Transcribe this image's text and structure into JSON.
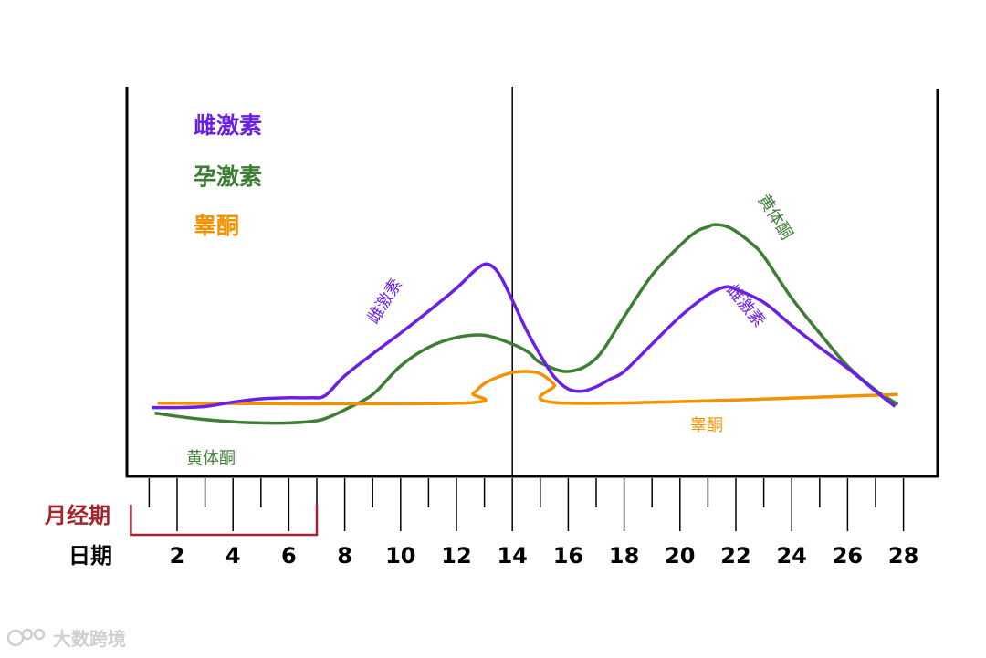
{
  "chart_data": {
    "type": "line",
    "title": "",
    "xlabel": "日期",
    "ylabel": "",
    "xlim": [
      1,
      28.6
    ],
    "x_ticks": [
      2,
      4,
      6,
      8,
      10,
      12,
      14,
      16,
      18,
      20,
      22,
      24,
      26,
      28
    ],
    "grid": false,
    "legend": {
      "position": "top-left",
      "entries": [
        {
          "label": "雌激素",
          "color": "#6a1ee6"
        },
        {
          "label": "孕激素",
          "color": "#3d7d34"
        },
        {
          "label": "睾酮",
          "color": "#f39200"
        }
      ]
    },
    "series": [
      {
        "name": "雌激素",
        "color": "#6a1ee6",
        "x": [
          1.1,
          2,
          3,
          4,
          5,
          6,
          6.8,
          7.3,
          8,
          9,
          10,
          11,
          12,
          12.7,
          13.1,
          13.5,
          14,
          14.5,
          15,
          15.5,
          16,
          16.5,
          17,
          17.5,
          18,
          19,
          20,
          21,
          21.6,
          22,
          23,
          24,
          25,
          26,
          27,
          27.7
        ],
        "y": [
          0.07,
          0.07,
          0.08,
          0.12,
          0.15,
          0.16,
          0.16,
          0.18,
          0.36,
          0.56,
          0.75,
          0.95,
          1.16,
          1.33,
          1.38,
          1.3,
          1.05,
          0.78,
          0.55,
          0.35,
          0.24,
          0.22,
          0.26,
          0.33,
          0.4,
          0.65,
          0.9,
          1.1,
          1.17,
          1.15,
          1.03,
          0.82,
          0.62,
          0.43,
          0.22,
          0.08
        ]
      },
      {
        "name": "孕激素",
        "color": "#3d7d34",
        "x": [
          1.2,
          2,
          3,
          4,
          5,
          6,
          7,
          7.5,
          8,
          9,
          10,
          11,
          12,
          13,
          14,
          14.6,
          15,
          16,
          17,
          18,
          19,
          20,
          20.6,
          21,
          21.2,
          21.6,
          22,
          22.6,
          23,
          24,
          25,
          26,
          27,
          27.8
        ],
        "y": [
          0.02,
          -0.01,
          -0.04,
          -0.06,
          -0.07,
          -0.07,
          -0.05,
          -0.01,
          0.05,
          0.19,
          0.45,
          0.62,
          0.71,
          0.73,
          0.65,
          0.57,
          0.48,
          0.4,
          0.52,
          0.9,
          1.28,
          1.55,
          1.68,
          1.72,
          1.74,
          1.73,
          1.68,
          1.56,
          1.45,
          1.07,
          0.75,
          0.45,
          0.23,
          0.1
        ]
      },
      {
        "name": "睾酮",
        "color": "#f39200",
        "x": [
          1.3,
          12.1,
          12.6,
          13,
          13.5,
          14,
          14.5,
          15,
          15.5,
          16,
          27.8
        ],
        "y": [
          0.11,
          0.11,
          0.2,
          0.29,
          0.35,
          0.39,
          0.4,
          0.38,
          0.28,
          0.11,
          0.19
        ]
      }
    ],
    "annotations": [
      {
        "text": "雌激素",
        "color": "#6a1ee6"
      },
      {
        "text": "黄体酮",
        "color": "#3d7d34"
      },
      {
        "text": "黄体酮",
        "color": "#3d7d34"
      },
      {
        "text": "雌激素",
        "color": "#6a1ee6"
      },
      {
        "text": "睾酮",
        "color": "#f39200"
      }
    ],
    "marker_line_x": 14,
    "period": {
      "label": "月经期",
      "start": 1,
      "end": 7,
      "color": "#a3252b"
    }
  },
  "watermark": {
    "text": "大数跨境"
  }
}
